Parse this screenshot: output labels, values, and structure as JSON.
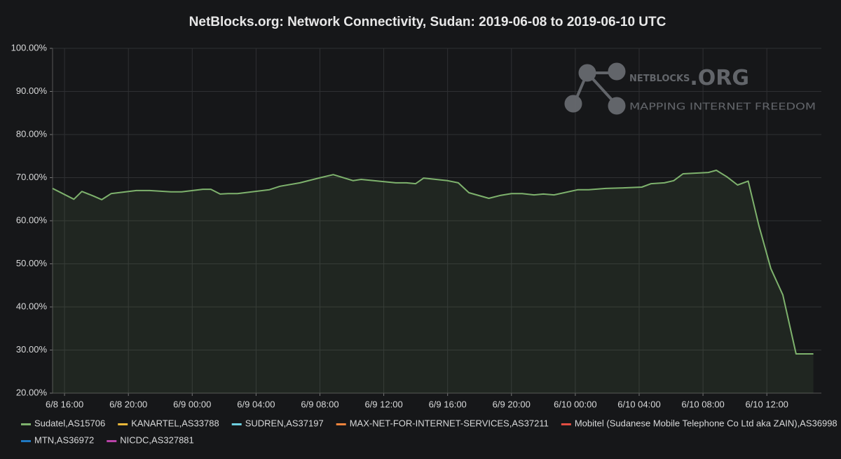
{
  "chart_data": {
    "type": "line",
    "title": "NetBlocks.org: Network Connectivity, Sudan: 2019-06-08 to 2019-06-10 UTC",
    "watermark": {
      "brand": "NETBLOCKS",
      "suffix": ".ORG",
      "tagline": "MAPPING INTERNET FREEDOM"
    },
    "x": [
      "6/8 15:15",
      "6/8 16:35",
      "6/8 17:05",
      "6/8 17:50",
      "6/8 18:20",
      "6/8 18:55",
      "6/8 20:30",
      "6/8 21:20",
      "6/8 22:40",
      "6/8 23:20",
      "6/9 00:40",
      "6/9 01:10",
      "6/9 01:45",
      "6/9 02:15",
      "6/9 02:50",
      "6/9 04:50",
      "6/9 05:30",
      "6/9 06:45",
      "6/9 07:55",
      "6/9 08:50",
      "6/9 10:05",
      "6/9 10:35",
      "6/9 12:45",
      "6/9 13:25",
      "6/9 14:00",
      "6/9 14:30",
      "6/9 16:00",
      "6/9 16:40",
      "6/9 17:20",
      "6/9 18:35",
      "6/9 19:20",
      "6/9 20:00",
      "6/9 20:40",
      "6/9 21:25",
      "6/9 22:00",
      "6/9 22:40",
      "6/10 00:10",
      "6/10 00:50",
      "6/10 01:55",
      "6/10 02:50",
      "6/10 04:10",
      "6/10 04:45",
      "6/10 05:35",
      "6/10 06:10",
      "6/10 06:45",
      "6/10 08:20",
      "6/10 08:50",
      "6/10 09:30",
      "6/10 10:10",
      "6/10 10:50",
      "6/10 11:30",
      "6/10 12:15",
      "6/10 13:00",
      "6/10 13:50",
      "6/10 14:55"
    ],
    "xlim": [
      "6/8 15:15",
      "6/10 15:25"
    ],
    "xticks": [
      "6/8 16:00",
      "6/8 20:00",
      "6/9 00:00",
      "6/9 04:00",
      "6/9 08:00",
      "6/9 12:00",
      "6/9 16:00",
      "6/9 20:00",
      "6/10 00:00",
      "6/10 04:00",
      "6/10 08:00",
      "6/10 12:00"
    ],
    "ylim": [
      20,
      100
    ],
    "yticks": [
      {
        "value": 20,
        "label": "20.00%"
      },
      {
        "value": 30,
        "label": "30.00%"
      },
      {
        "value": 40,
        "label": "40.00%"
      },
      {
        "value": 50,
        "label": "50.00%"
      },
      {
        "value": 60,
        "label": "60.00%"
      },
      {
        "value": 70,
        "label": "70.00%"
      },
      {
        "value": 80,
        "label": "80.00%"
      },
      {
        "value": 90,
        "label": "90.00%"
      },
      {
        "value": 100,
        "label": "100.00%"
      }
    ],
    "grid": true,
    "legend": "bottom",
    "series": [
      {
        "name": "Sudatel,AS15706",
        "color": "#7eb26d",
        "values": [
          67.5,
          65.0,
          66.8,
          65.7,
          64.9,
          66.3,
          67.0,
          67.0,
          66.7,
          66.7,
          67.3,
          67.3,
          66.2,
          66.3,
          66.3,
          67.2,
          68.0,
          68.8,
          69.9,
          70.7,
          69.3,
          69.6,
          68.8,
          68.8,
          68.6,
          69.9,
          69.3,
          68.8,
          66.5,
          65.2,
          65.9,
          66.3,
          66.3,
          66.0,
          66.2,
          66.0,
          67.2,
          67.2,
          67.5,
          67.6,
          67.8,
          68.6,
          68.8,
          69.3,
          70.9,
          71.2,
          71.7,
          70.2,
          68.3,
          69.2,
          58.9,
          48.9,
          42.8,
          29.1,
          29.1
        ]
      },
      {
        "name": "KANARTEL,AS33788",
        "color": "#eab839",
        "values": [
          null,
          null,
          null,
          null,
          null,
          null,
          null,
          null,
          null,
          null,
          null,
          null,
          null,
          null,
          null,
          null,
          null,
          null,
          null,
          null,
          null,
          null,
          null,
          null,
          null,
          null,
          null,
          null,
          null,
          null,
          null,
          null,
          null,
          null,
          null,
          null,
          null,
          null,
          null,
          null,
          null,
          null,
          null,
          null,
          null,
          null,
          null,
          null,
          null,
          null,
          null,
          null,
          null,
          null,
          null
        ]
      },
      {
        "name": "SUDREN,AS37197",
        "color": "#6ed0e0",
        "values": [
          null,
          null,
          null,
          null,
          null,
          null,
          null,
          null,
          null,
          null,
          null,
          null,
          null,
          null,
          null,
          null,
          null,
          null,
          null,
          null,
          null,
          null,
          null,
          null,
          null,
          null,
          null,
          null,
          null,
          null,
          null,
          null,
          null,
          null,
          null,
          null,
          null,
          null,
          null,
          null,
          null,
          null,
          null,
          null,
          null,
          null,
          null,
          null,
          null,
          null,
          null,
          null,
          null,
          null,
          null
        ]
      },
      {
        "name": "MAX-NET-FOR-INTERNET-SERVICES,AS37211",
        "color": "#ef843c",
        "values": [
          null,
          null,
          null,
          null,
          null,
          null,
          null,
          null,
          null,
          null,
          null,
          null,
          null,
          null,
          null,
          null,
          null,
          null,
          null,
          null,
          null,
          null,
          null,
          null,
          null,
          null,
          null,
          null,
          null,
          null,
          null,
          null,
          null,
          null,
          null,
          null,
          null,
          null,
          null,
          null,
          null,
          null,
          null,
          null,
          null,
          null,
          null,
          null,
          null,
          null,
          null,
          null,
          null,
          null,
          null
        ]
      },
      {
        "name": "Mobitel (Sudanese Mobile Telephone Co Ltd aka ZAIN),AS36998",
        "color": "#e24d42",
        "values": [
          null,
          null,
          null,
          null,
          null,
          null,
          null,
          null,
          null,
          null,
          null,
          null,
          null,
          null,
          null,
          null,
          null,
          null,
          null,
          null,
          null,
          null,
          null,
          null,
          null,
          null,
          null,
          null,
          null,
          null,
          null,
          null,
          null,
          null,
          null,
          null,
          null,
          null,
          null,
          null,
          null,
          null,
          null,
          null,
          null,
          null,
          null,
          null,
          null,
          null,
          null,
          null,
          null,
          null,
          null
        ]
      },
      {
        "name": "MTN,AS36972",
        "color": "#1f78c1",
        "values": [
          null,
          null,
          null,
          null,
          null,
          null,
          null,
          null,
          null,
          null,
          null,
          null,
          null,
          null,
          null,
          null,
          null,
          null,
          null,
          null,
          null,
          null,
          null,
          null,
          null,
          null,
          null,
          null,
          null,
          null,
          null,
          null,
          null,
          null,
          null,
          null,
          null,
          null,
          null,
          null,
          null,
          null,
          null,
          null,
          null,
          null,
          null,
          null,
          null,
          null,
          null,
          null,
          null,
          null,
          null
        ]
      },
      {
        "name": "NICDC,AS327881",
        "color": "#ba43a9",
        "values": [
          null,
          null,
          null,
          null,
          null,
          null,
          null,
          null,
          null,
          null,
          null,
          null,
          null,
          null,
          null,
          null,
          null,
          null,
          null,
          null,
          null,
          null,
          null,
          null,
          null,
          null,
          null,
          null,
          null,
          null,
          null,
          null,
          null,
          null,
          null,
          null,
          null,
          null,
          null,
          null,
          null,
          null,
          null,
          null,
          null,
          null,
          null,
          null,
          null,
          null,
          null,
          null,
          null,
          null,
          null
        ]
      }
    ]
  }
}
